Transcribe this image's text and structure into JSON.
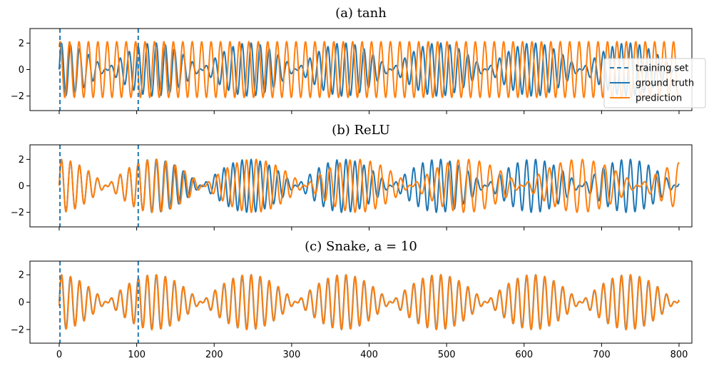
{
  "chart_data": {
    "type": "line",
    "x_range": [
      0,
      800
    ],
    "xticks": [
      0,
      100,
      200,
      300,
      400,
      500,
      600,
      700,
      800
    ],
    "yticks": [
      -2,
      0,
      2
    ],
    "training_set_bounds": [
      1,
      102
    ],
    "legend": {
      "placement": "right",
      "entries": [
        "training set",
        "ground truth",
        "prediction"
      ]
    },
    "colors": {
      "ground_truth": "#1f77b4",
      "prediction": "#ff7f0e",
      "training_set": "#1f77b4"
    },
    "panels": [
      {
        "title": "(a) tanh",
        "ylim": [
          -3.1,
          3.1
        ],
        "series": [
          {
            "name": "ground truth",
            "curve": "x(t) = sin(t) + sin(1.1 t), t = 2π·x/12.24"
          },
          {
            "name": "prediction",
            "curve": "x(t) = 2.1·cos(2π·(x−1.2)/12.18)"
          }
        ]
      },
      {
        "title": "(b) ReLU",
        "ylim": [
          -3.1,
          3.1
        ],
        "series": [
          {
            "name": "ground truth",
            "curve": "x(t) = sin(t) + sin(1.1 t), t = 2π·x/12.24"
          },
          {
            "name": "prediction",
            "curve": "ground truth with frequency error growing after x = 102"
          }
        ]
      },
      {
        "title": "(c) Snake, a = 10",
        "ylim": [
          -3.0,
          3.0
        ],
        "series": [
          {
            "name": "ground truth",
            "curve": "x(t) = sin(t) + sin(1.1 t), t = 2π·x/12.24"
          },
          {
            "name": "prediction",
            "curve": "nearly identical to ground truth"
          }
        ]
      }
    ]
  }
}
